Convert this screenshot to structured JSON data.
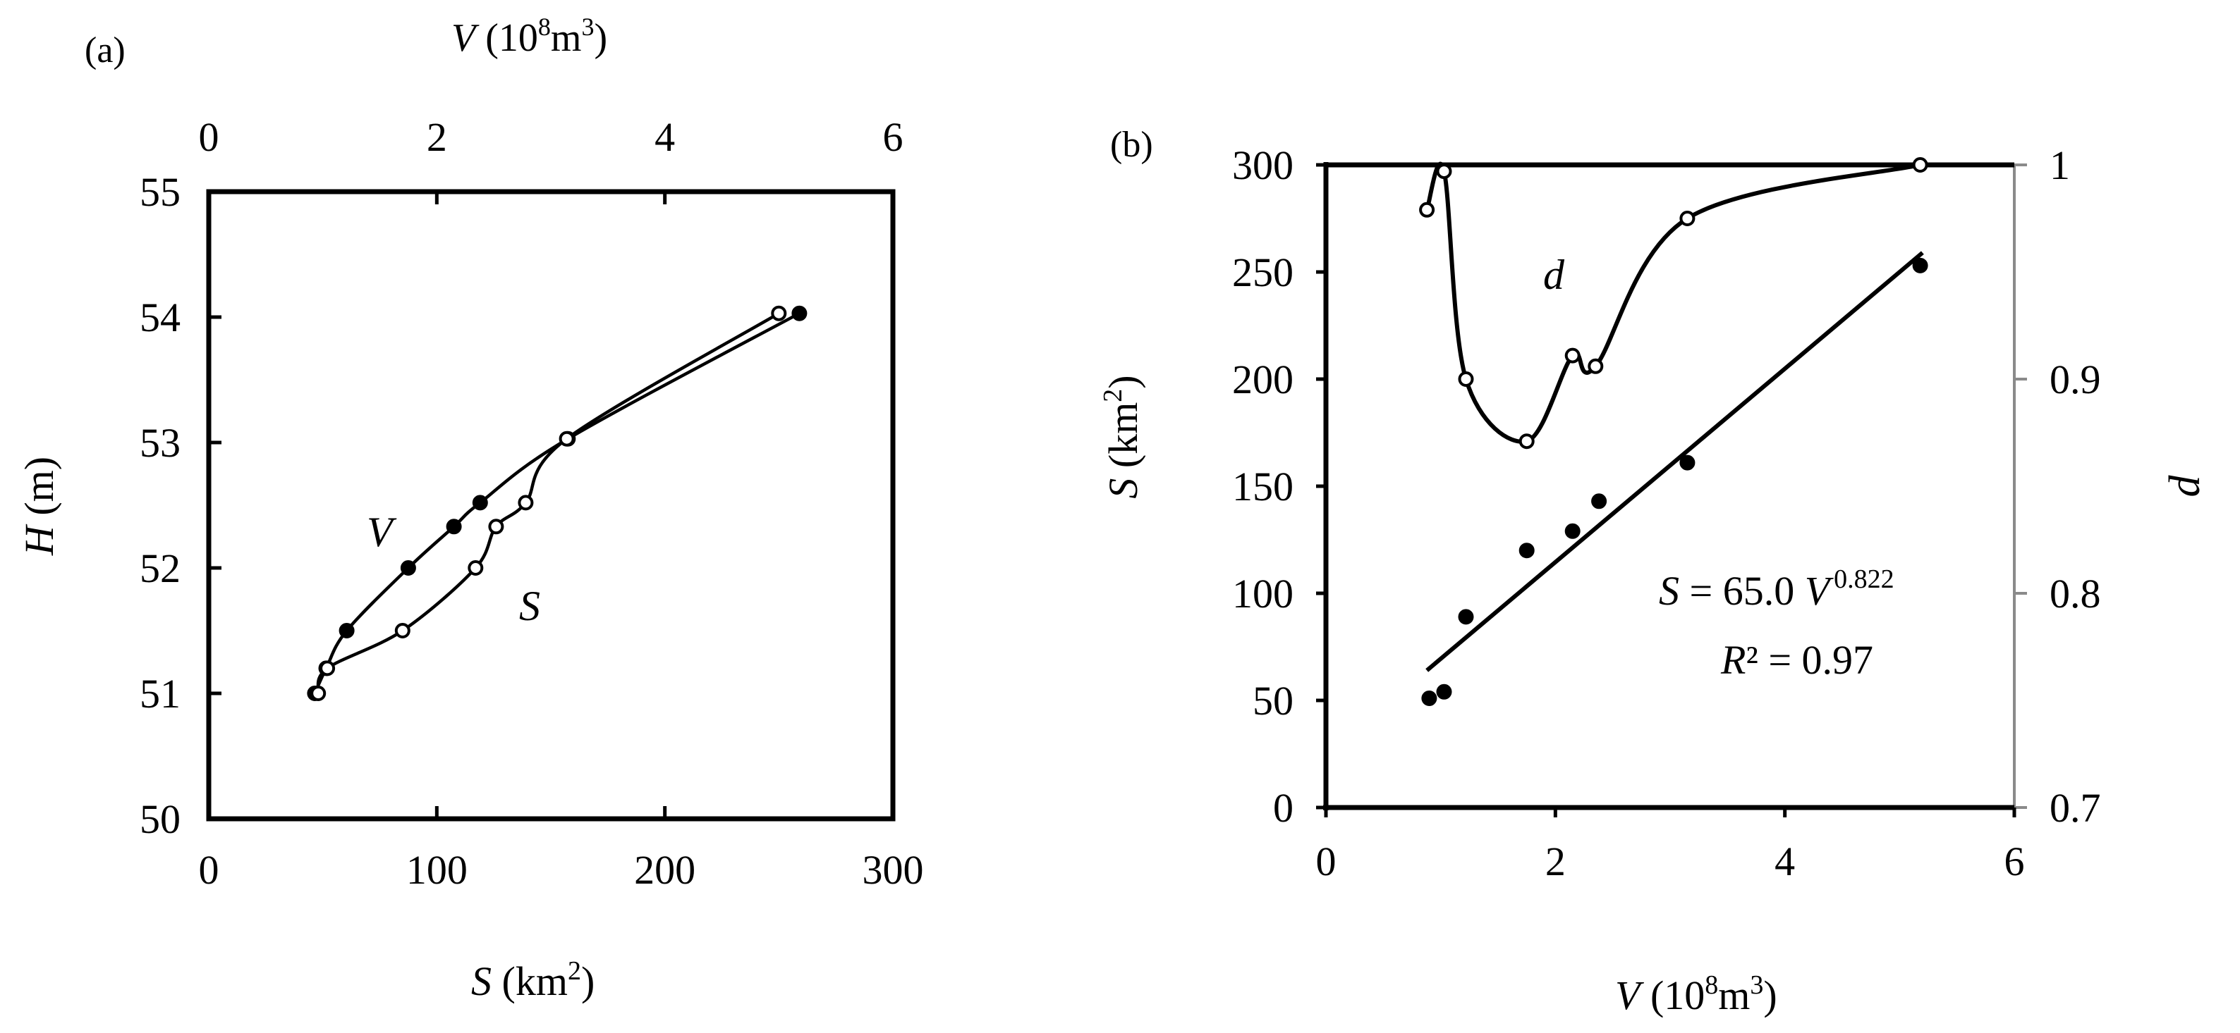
{
  "chart_data": [
    {
      "panel_label": "(a)",
      "type": "line",
      "title": "",
      "xlabel": "S (km²)",
      "x2label": "V (10⁸m³)",
      "ylabel": "H (m)",
      "xlim": [
        0,
        300
      ],
      "x2lim": [
        0,
        6
      ],
      "ylim": [
        50,
        55
      ],
      "xticks": [
        "0",
        "100",
        "200",
        "300"
      ],
      "x2ticks": [
        "0",
        "2",
        "4",
        "6"
      ],
      "yticks": [
        "50",
        "51",
        "52",
        "53",
        "54",
        "55"
      ],
      "series": [
        {
          "name": "V",
          "label": "V",
          "marker": "filled",
          "axis": "top",
          "points": [
            [
              0.93,
              51.0
            ],
            [
              1.03,
              51.2
            ],
            [
              1.21,
              51.5
            ],
            [
              1.75,
              52.0
            ],
            [
              2.15,
              52.33
            ],
            [
              2.38,
              52.52
            ],
            [
              3.15,
              53.03
            ],
            [
              5.18,
              54.03
            ]
          ]
        },
        {
          "name": "S",
          "label": "S",
          "marker": "open",
          "axis": "bottom",
          "points": [
            [
              48,
              51.0
            ],
            [
              52,
              51.2
            ],
            [
              85,
              51.5
            ],
            [
              117,
              52.0
            ],
            [
              126,
              52.33
            ],
            [
              139,
              52.52
            ],
            [
              157,
              53.03
            ],
            [
              250,
              54.03
            ]
          ]
        }
      ]
    },
    {
      "panel_label": "(b)",
      "type": "scatter",
      "title": "",
      "xlabel": "V (10⁸m³)",
      "ylabel": "S (km²)",
      "y2label": "d",
      "xlim": [
        0,
        6
      ],
      "ylim": [
        0,
        300
      ],
      "y2lim": [
        0.7,
        1.0
      ],
      "xticks": [
        "0",
        "2",
        "4",
        "6"
      ],
      "yticks": [
        "0",
        "50",
        "100",
        "150",
        "200",
        "250",
        "300"
      ],
      "y2ticks": [
        "0.7",
        "0.8",
        "0.9",
        "1"
      ],
      "series": [
        {
          "name": "S",
          "marker": "filled",
          "axis": "left",
          "points": [
            [
              0.9,
              51
            ],
            [
              1.03,
              54
            ],
            [
              1.22,
              89
            ],
            [
              1.75,
              120
            ],
            [
              2.15,
              129
            ],
            [
              2.38,
              143
            ],
            [
              3.15,
              161
            ],
            [
              5.18,
              253
            ]
          ]
        },
        {
          "name": "fit",
          "type": "line",
          "axis": "left",
          "points": [
            [
              0.88,
              64
            ],
            [
              5.2,
              259
            ]
          ]
        },
        {
          "name": "d",
          "label": "d",
          "marker": "open",
          "axis": "right",
          "points": [
            [
              0.88,
              0.979
            ],
            [
              1.03,
              0.997
            ],
            [
              1.22,
              0.9
            ],
            [
              1.75,
              0.871
            ],
            [
              2.15,
              0.911
            ],
            [
              2.35,
              0.906
            ],
            [
              3.15,
              0.975
            ],
            [
              5.18,
              1.0
            ]
          ]
        }
      ],
      "annotation": {
        "equation_lhs": "S",
        "equation_mid": " = 65.0 ",
        "equation_var": "V",
        "equation_exp": "0.822",
        "r2_label": "R",
        "r2_value": "² = 0.97"
      }
    }
  ]
}
